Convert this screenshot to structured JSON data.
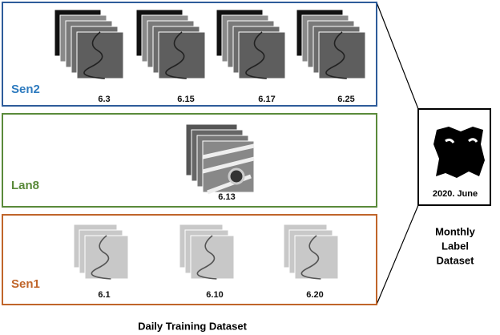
{
  "panels": [
    {
      "name": "Sen2",
      "dates": [
        "6.3",
        "6.15",
        "6.17",
        "6.25"
      ]
    },
    {
      "name": "Lan8",
      "dates": [
        "6.13"
      ]
    },
    {
      "name": "Sen1",
      "dates": [
        "6.1",
        "6.10",
        "6.20"
      ]
    }
  ],
  "label_box": {
    "date": "2020. June",
    "caption": [
      "Monthly",
      "Label",
      "Dataset"
    ]
  },
  "caption": "Daily Training Dataset"
}
